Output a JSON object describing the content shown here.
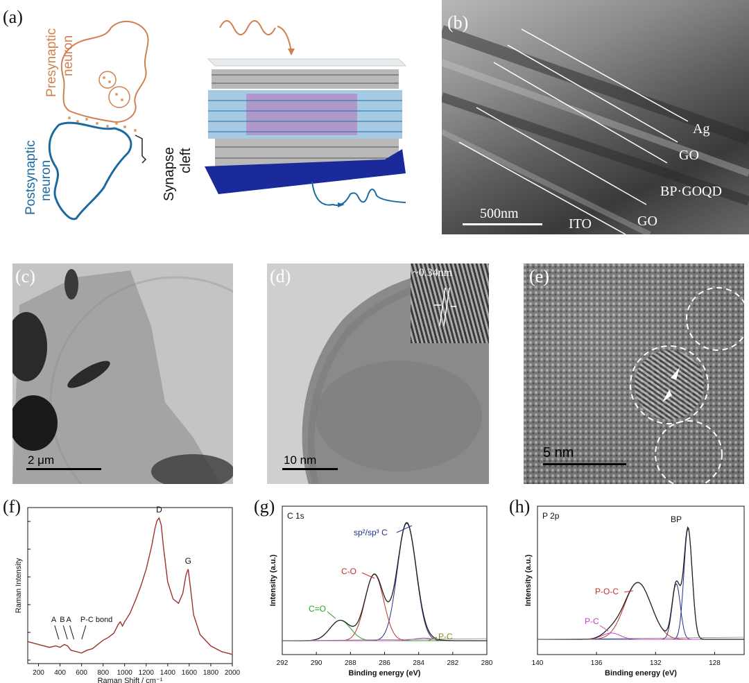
{
  "panels": {
    "a": {
      "label": "(a)",
      "presynaptic": [
        "Presynaptic",
        "neuron"
      ],
      "postsynaptic": [
        "Postsynaptic",
        "neuron"
      ],
      "synapse": [
        "Synapse",
        "cleft"
      ]
    },
    "b": {
      "label": "(b)",
      "layers": [
        "Ag",
        "GO",
        "BP·GOQD",
        "GO",
        "ITO"
      ],
      "scale": "500nm"
    },
    "c": {
      "label": "(c)",
      "scale": "2 μm"
    },
    "d": {
      "label": "(d)",
      "scale": "10 nm",
      "inset": "~0.34nm"
    },
    "e": {
      "label": "(e)",
      "scale": "5 nm"
    },
    "f": {
      "label": "(f)"
    },
    "g": {
      "label": "(g)",
      "corner": "C 1s"
    },
    "h": {
      "label": "(h)",
      "corner": "P 2p"
    }
  },
  "chart_data": [
    {
      "type": "line",
      "panel": "f",
      "xlabel": "Raman Shift / cm⁻¹",
      "ylabel": "Raman Intensity",
      "xlim": [
        100,
        2000
      ],
      "xticks": [
        200,
        400,
        600,
        800,
        1000,
        1200,
        1400,
        1600,
        1800,
        2000
      ],
      "peaks": [
        {
          "label": "D",
          "x": 1320
        },
        {
          "label": "G",
          "x": 1590
        }
      ],
      "annotations": [
        "A",
        "B",
        "A",
        "P-C bond"
      ],
      "series": [
        {
          "color": "#a0302a",
          "x": [
            100,
            200,
            300,
            360,
            400,
            440,
            470,
            500,
            550,
            600,
            650,
            700,
            750,
            800,
            850,
            900,
            940,
            960,
            980,
            1000,
            1050,
            1100,
            1150,
            1200,
            1250,
            1280,
            1300,
            1320,
            1340,
            1360,
            1400,
            1450,
            1500,
            1540,
            1570,
            1590,
            1610,
            1640,
            1700,
            1800,
            1900,
            2000
          ],
          "y": [
            0.13,
            0.11,
            0.09,
            0.1,
            0.09,
            0.11,
            0.1,
            0.07,
            0.06,
            0.05,
            0.07,
            0.08,
            0.11,
            0.14,
            0.16,
            0.19,
            0.25,
            0.27,
            0.24,
            0.27,
            0.33,
            0.42,
            0.52,
            0.64,
            0.8,
            0.92,
            0.98,
            1.0,
            0.95,
            0.8,
            0.55,
            0.43,
            0.4,
            0.47,
            0.6,
            0.64,
            0.52,
            0.32,
            0.18,
            0.1,
            0.06,
            0.04
          ]
        }
      ]
    },
    {
      "type": "line",
      "panel": "g",
      "xlabel": "Binding energy (eV)",
      "ylabel": "Intensity (a.u.)",
      "xlim": [
        292,
        280
      ],
      "xticks": [
        292,
        290,
        288,
        286,
        284,
        282,
        280
      ],
      "reversed_x": true,
      "peak_labels": [
        {
          "text": "sp²/sp³ C",
          "color": "#1f2f8a"
        },
        {
          "text": "C-O",
          "color": "#c0302a"
        },
        {
          "text": "C=O",
          "color": "#2aa02a"
        },
        {
          "text": "P-C",
          "color": "#8a8a10"
        }
      ],
      "series": [
        {
          "name": "sp2/sp3 C",
          "color": "#1f2f8a",
          "center": 284.7,
          "amp": 0.92,
          "sigma": 0.55
        },
        {
          "name": "C-O",
          "color": "#c0302a",
          "center": 286.6,
          "amp": 0.52,
          "sigma": 0.55
        },
        {
          "name": "C=O",
          "color": "#2aa02a",
          "center": 288.6,
          "amp": 0.16,
          "sigma": 0.6
        },
        {
          "name": "P-C",
          "color": "#c040c0",
          "center": 283.7,
          "amp": 0.02,
          "sigma": 0.6
        }
      ]
    },
    {
      "type": "line",
      "panel": "h",
      "xlabel": "Binding energy (eV)",
      "ylabel": "Intensity (a.u.)",
      "xlim": [
        140,
        126
      ],
      "xticks": [
        140,
        136,
        132,
        128
      ],
      "reversed_x": true,
      "peak_labels": [
        {
          "text": "BP",
          "color": "#111111"
        },
        {
          "text": "P-O-C",
          "color": "#c0302a"
        },
        {
          "text": "P-C",
          "color": "#c040c0"
        }
      ],
      "series": [
        {
          "name": "BP 2p3/2",
          "color": "#1f2f8a",
          "center": 129.8,
          "amp": 0.88,
          "sigma": 0.28
        },
        {
          "name": "BP 2p1/2",
          "color": "#1f2f8a",
          "center": 130.6,
          "amp": 0.44,
          "sigma": 0.28
        },
        {
          "name": "P-O-C",
          "color": "#c0302a",
          "center": 133.2,
          "amp": 0.45,
          "sigma": 0.9
        },
        {
          "name": "P-C",
          "color": "#c040c0",
          "center": 135.0,
          "amp": 0.05,
          "sigma": 0.6
        }
      ]
    }
  ]
}
